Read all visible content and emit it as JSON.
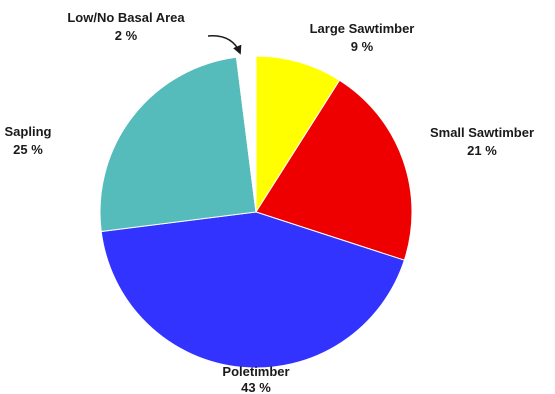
{
  "chart_data": {
    "type": "pie",
    "title": "",
    "start_angle_deg": 0,
    "direction": "clockwise",
    "slices": [
      {
        "label": "Large Sawtimber",
        "value": 9,
        "value_text": "9 %",
        "color": "#ffff00"
      },
      {
        "label": "Small Sawtimber",
        "value": 21,
        "value_text": "21 %",
        "color": "#ee0000"
      },
      {
        "label": "Poletimber",
        "value": 43,
        "value_text": "43 %",
        "color": "#3333ff"
      },
      {
        "label": "Sapling",
        "value": 25,
        "value_text": "25 %",
        "color": "#55bbbb"
      },
      {
        "label": "Low/No Basal Area",
        "value": 2,
        "value_text": "2 %",
        "color": "#ffffff"
      }
    ],
    "legend": "none"
  }
}
